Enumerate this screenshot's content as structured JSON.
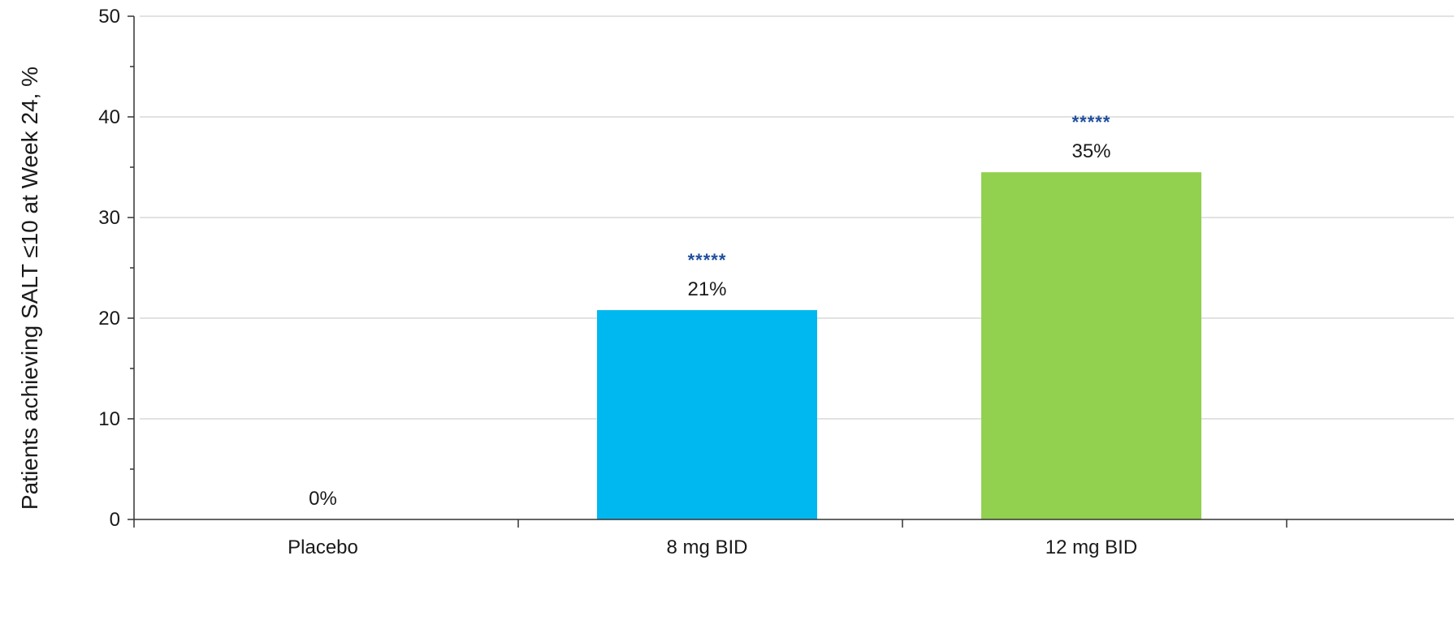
{
  "chart_data": {
    "type": "bar",
    "categories": [
      "Placebo",
      "8 mg BID",
      "12 mg BID"
    ],
    "values": [
      0,
      20.8,
      34.5
    ],
    "data_labels": [
      "0%",
      "21%",
      "35%"
    ],
    "significance_labels": [
      "",
      "*****",
      "*****"
    ],
    "title": "",
    "xlabel": "",
    "ylabel": "Patients achieving SALT ≤10 at Week 24, %",
    "ylim": [
      0,
      50
    ],
    "yticks": [
      0,
      10,
      20,
      30,
      40,
      50
    ],
    "grid": true,
    "legend": "none",
    "colors": {
      "bars": [
        "#00b8f0",
        "#00b8f0",
        "#92d050"
      ],
      "significance": "#1f4e9c",
      "gridline": "#d9d9d9",
      "axis": "#333333"
    }
  }
}
